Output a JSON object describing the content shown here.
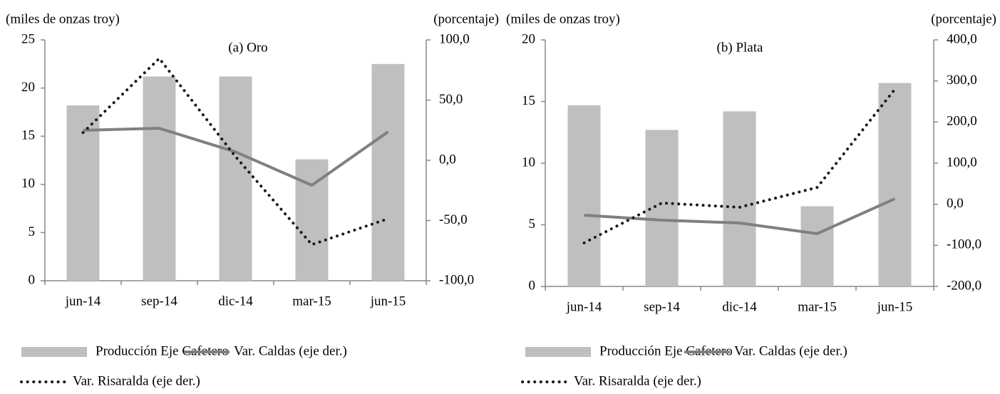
{
  "chart_data": [
    {
      "type": "bar",
      "title": "(a) Oro",
      "ylabel": "(miles de onzas troy)",
      "y2label": "(porcentaje)",
      "categories": [
        "jun-14",
        "sep-14",
        "dic-14",
        "mar-15",
        "jun-15"
      ],
      "series": [
        {
          "name": "Producción Eje Cafetero",
          "color": "#bfbfbf",
          "values": [
            18.2,
            21.2,
            21.2,
            12.6,
            22.5
          ]
        },
        {
          "name": "Var. Caldas (eje der.)",
          "color": "#808080",
          "axis": "y2",
          "linestyle": "solid",
          "values": [
            24.9,
            26.6,
            7,
            -20.7,
            23.7
          ]
        },
        {
          "name": "Var. Risaralda (eje der.)",
          "color": "#1a1a1a",
          "axis": "y2",
          "linestyle": "dotted",
          "values": [
            23,
            84.6,
            3,
            -70,
            -48.5
          ]
        }
      ],
      "ylim": [
        0,
        25
      ],
      "yticks": [
        0,
        5,
        10,
        15,
        20,
        25
      ],
      "y2lim": [
        -100,
        100
      ],
      "y2ticks": [
        {
          "value": -100,
          "label": "-100,0"
        },
        {
          "value": -50,
          "label": "-50,0"
        },
        {
          "value": 0,
          "label": "0,0"
        },
        {
          "value": 50,
          "label": "50,0"
        },
        {
          "value": 100,
          "label": "100,0"
        }
      ]
    },
    {
      "type": "bar",
      "title": "(b) Plata",
      "ylabel": "(miles de onzas troy)",
      "y2label": "(porcentaje)",
      "categories": [
        "jun-14",
        "sep-14",
        "dic-14",
        "mar-15",
        "jun-15"
      ],
      "series": [
        {
          "name": "Producción Eje Cafetero",
          "color": "#bfbfbf",
          "values": [
            14.7,
            12.7,
            14.2,
            6.5,
            16.5
          ]
        },
        {
          "name": "Var. Caldas (eje der.)",
          "color": "#808080",
          "axis": "y2",
          "linestyle": "solid",
          "values": [
            -26.5,
            -38.7,
            -45.6,
            -71.6,
            13.4
          ]
        },
        {
          "name": "Var. Risaralda (eje der.)",
          "color": "#1a1a1a",
          "axis": "y2",
          "linestyle": "dotted",
          "values": [
            -94,
            3,
            -7.4,
            41,
            280
          ]
        }
      ],
      "ylim": [
        0,
        20
      ],
      "yticks": [
        0,
        5,
        10,
        15,
        20
      ],
      "y2lim": [
        -200,
        400
      ],
      "y2ticks": [
        {
          "value": -200,
          "label": "-200,0"
        },
        {
          "value": -100,
          "label": "-100,0"
        },
        {
          "value": 0,
          "label": "0,0"
        },
        {
          "value": 100,
          "label": "100,0"
        },
        {
          "value": 200,
          "label": "200,0"
        },
        {
          "value": 300,
          "label": "300,0"
        },
        {
          "value": 400,
          "label": "400,0"
        }
      ]
    }
  ]
}
